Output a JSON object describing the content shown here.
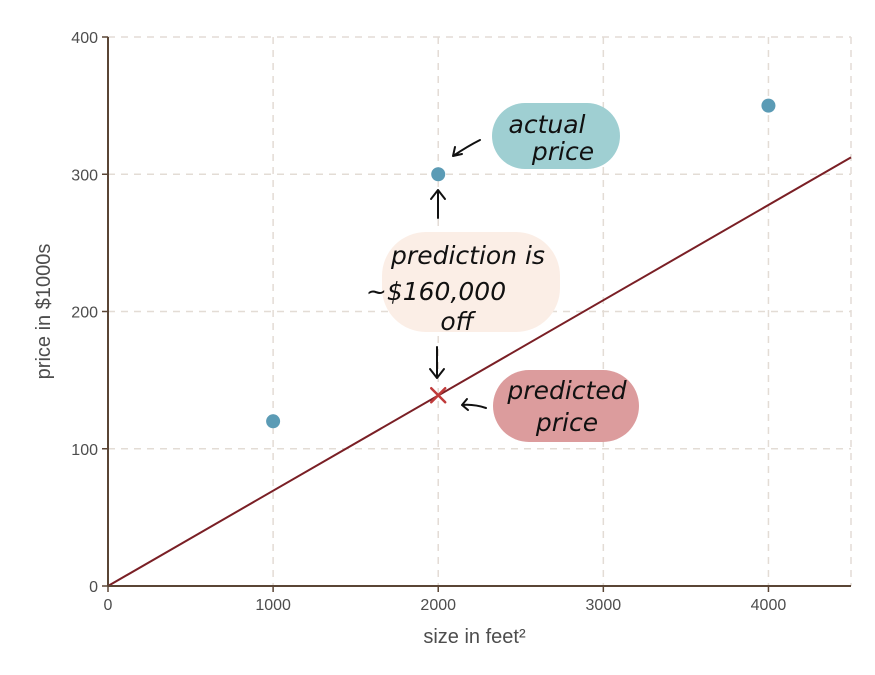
{
  "chart_data": {
    "type": "scatter",
    "xlabel": "size in feet²",
    "ylabel": "price in $1000s",
    "xlim": [
      0,
      4500
    ],
    "ylim": [
      0,
      400
    ],
    "x_ticks": [
      0,
      1000,
      2000,
      3000,
      4000
    ],
    "y_ticks": [
      0,
      100,
      200,
      300,
      400
    ],
    "grid": true,
    "series": [
      {
        "type": "scatter",
        "x": [
          1000,
          2000,
          4000
        ],
        "y": [
          120,
          300,
          350
        ]
      }
    ],
    "regression_line": {
      "slope": 0.0694,
      "intercept": 0
    },
    "predicted_point": {
      "x": 2000,
      "y": 139
    },
    "annotations": [
      {
        "id": "actual",
        "lines": [
          "actual",
          "price"
        ]
      },
      {
        "id": "error",
        "lines": [
          "prediction is",
          "~$160,000",
          "off"
        ]
      },
      {
        "id": "predicted",
        "lines": [
          "predicted",
          "price"
        ]
      }
    ],
    "colors": {
      "point": "#5b9bb5",
      "line": "#7a1f25",
      "predicted_marker": "#c03a3a",
      "axis": "#5a4535",
      "grid": "#e3dcd5",
      "actual_bubble": "#9fcfd2",
      "error_bubble": "#fbeee6",
      "predicted_bubble": "#dc9c9d"
    }
  }
}
